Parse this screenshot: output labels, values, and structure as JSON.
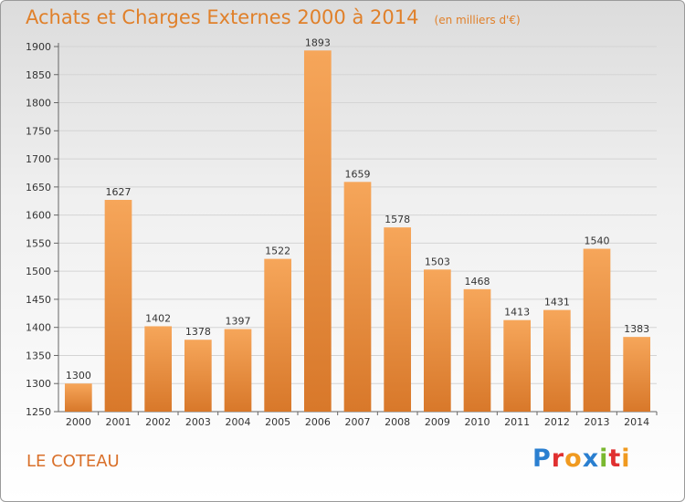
{
  "header": {
    "title": "Achats et Charges Externes 2000 à 2014",
    "subtitle": "(en milliers d'€)"
  },
  "footer": {
    "city": "LE COTEAU",
    "logo_letters": [
      {
        "ch": "P",
        "color": "#2a7fd0"
      },
      {
        "ch": "r",
        "color": "#e03030"
      },
      {
        "ch": "o",
        "color": "#f09a20"
      },
      {
        "ch": "x",
        "color": "#2a7fd0"
      },
      {
        "ch": "i",
        "color": "#7ab830"
      },
      {
        "ch": "t",
        "color": "#e03030"
      },
      {
        "ch": "i",
        "color": "#f09a20"
      }
    ]
  },
  "chart_data": {
    "type": "bar",
    "title": "Achats et Charges Externes 2000 à 2014",
    "subtitle": "(en milliers d'€)",
    "categories": [
      "2000",
      "2001",
      "2002",
      "2003",
      "2004",
      "2005",
      "2006",
      "2007",
      "2008",
      "2009",
      "2010",
      "2011",
      "2012",
      "2013",
      "2014"
    ],
    "values": [
      1300,
      1627,
      1402,
      1378,
      1397,
      1522,
      1893,
      1659,
      1578,
      1503,
      1468,
      1413,
      1431,
      1540,
      1383
    ],
    "ylim": [
      1250,
      1900
    ],
    "yticks": [
      1250,
      1300,
      1350,
      1400,
      1450,
      1500,
      1550,
      1600,
      1650,
      1700,
      1750,
      1800,
      1850,
      1900
    ],
    "grid": true,
    "legend": "none",
    "bar_color_top": "#f6a65a",
    "bar_color_bottom": "#d8782a"
  }
}
